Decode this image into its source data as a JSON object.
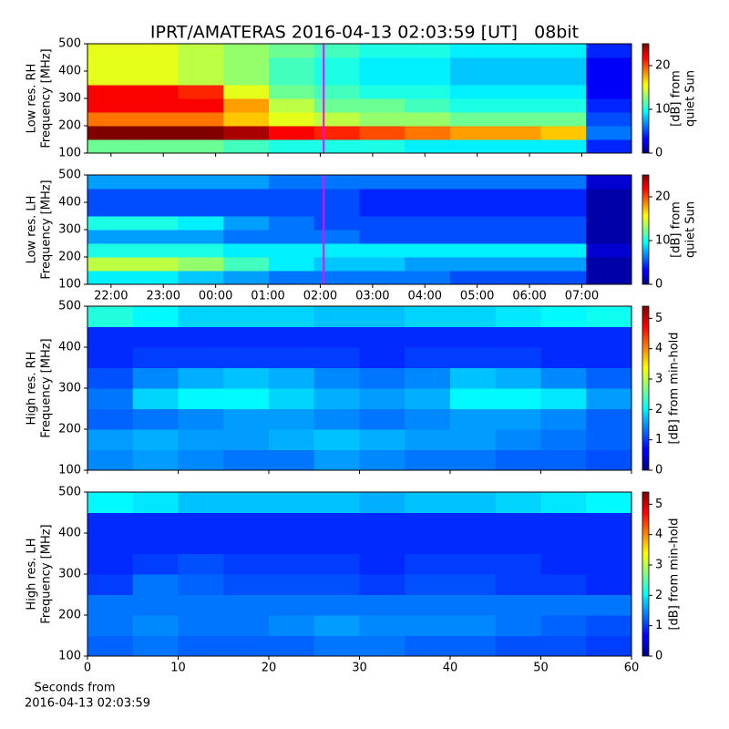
{
  "title": "IPRT/AMATERAS 2016-04-13 02:03:59 [UT]   08bit",
  "xlabel": [
    "Seconds from",
    "2016-04-13 02:03:59"
  ],
  "chart_data": [
    {
      "type": "heatmap",
      "ylabel": [
        "Low res. RH",
        "Frequency [MHz]"
      ],
      "colormap": "jet",
      "ylim": [
        100,
        500
      ],
      "yticks": [
        100,
        200,
        300,
        400,
        500
      ],
      "xlim": [
        21.55,
        31.95
      ],
      "xticks": [
        22,
        23,
        24,
        25,
        26,
        27,
        28,
        29,
        30,
        31
      ],
      "show_xticklabels": false,
      "marker_line": {
        "x": 26.066,
        "color": "#ff00ff"
      },
      "clim": [
        0,
        25
      ],
      "cticks": [
        0,
        10,
        20
      ],
      "clabel": [
        "[dB] from",
        "quiet Sun"
      ],
      "z": [
        [
          12,
          12,
          12,
          11,
          10,
          10,
          10,
          9,
          9,
          9,
          9,
          4
        ],
        [
          25,
          25,
          25,
          24,
          22,
          21,
          20,
          19,
          18,
          18,
          17,
          6
        ],
        [
          19,
          19,
          19,
          17,
          15,
          14,
          13,
          13,
          12,
          12,
          12,
          5
        ],
        [
          22,
          22,
          22,
          18,
          14,
          12,
          12,
          11,
          10,
          10,
          10,
          4
        ],
        [
          22,
          22,
          21,
          15,
          12,
          11,
          10,
          10,
          9,
          9,
          9,
          3
        ],
        [
          15,
          15,
          14,
          13,
          11,
          10,
          9,
          9,
          8,
          8,
          8,
          3
        ],
        [
          15,
          15,
          14,
          13,
          11,
          10,
          9,
          9,
          8,
          8,
          8,
          3
        ],
        [
          15,
          15,
          14,
          13,
          12,
          11,
          10,
          10,
          9,
          9,
          9,
          4
        ]
      ]
    },
    {
      "type": "heatmap",
      "ylabel": [
        "Low res. LH",
        "Frequency [MHz]"
      ],
      "colormap": "jet",
      "ylim": [
        100,
        500
      ],
      "yticks": [
        100,
        200,
        300,
        400,
        500
      ],
      "xlim": [
        21.55,
        31.95
      ],
      "xticks": [
        {
          "value": 22,
          "label": "22:00"
        },
        {
          "value": 23,
          "label": "23:00"
        },
        {
          "value": 24,
          "label": "00:00"
        },
        {
          "value": 25,
          "label": "01:00"
        },
        {
          "value": 26,
          "label": "02:00"
        },
        {
          "value": 27,
          "label": "03:00"
        },
        {
          "value": 28,
          "label": "04:00"
        },
        {
          "value": 29,
          "label": "05:00"
        },
        {
          "value": 30,
          "label": "06:00"
        },
        {
          "value": 31,
          "label": "07:00"
        }
      ],
      "show_xticklabels": true,
      "marker_line": {
        "x": 26.066,
        "color": "#ff00ff"
      },
      "clim": [
        0,
        25
      ],
      "cticks": [
        0,
        10,
        20
      ],
      "clabel": [
        "[dB] from",
        "quiet Sun"
      ],
      "z": [
        [
          9,
          9,
          8,
          7,
          6,
          6,
          6,
          6,
          5,
          5,
          5,
          1
        ],
        [
          14,
          14,
          13,
          11,
          9,
          8,
          8,
          7,
          7,
          7,
          7,
          1
        ],
        [
          10,
          10,
          10,
          9,
          9,
          9,
          9,
          9,
          9,
          9,
          9,
          2
        ],
        [
          7,
          7,
          7,
          6,
          6,
          6,
          5,
          5,
          5,
          5,
          5,
          1
        ],
        [
          10,
          10,
          9,
          7,
          6,
          5,
          5,
          5,
          5,
          5,
          5,
          1
        ],
        [
          5,
          5,
          5,
          5,
          5,
          5,
          4,
          4,
          4,
          4,
          4,
          1
        ],
        [
          5,
          5,
          5,
          5,
          5,
          5,
          4,
          4,
          4,
          4,
          4,
          1
        ],
        [
          7,
          7,
          7,
          7,
          6,
          6,
          6,
          6,
          6,
          6,
          6,
          2
        ]
      ]
    },
    {
      "type": "heatmap",
      "ylabel": [
        "High res. RH",
        "Frequency [MHz]"
      ],
      "colormap": "jet",
      "ylim": [
        100,
        500
      ],
      "yticks": [
        100,
        200,
        300,
        400,
        500
      ],
      "xlim": [
        0,
        60
      ],
      "xticks": [
        0,
        10,
        20,
        30,
        40,
        50,
        60
      ],
      "show_xticklabels": false,
      "clim": [
        0,
        5.4
      ],
      "cticks": [
        0,
        1,
        2,
        3,
        4,
        5
      ],
      "clabel": [
        "[dB] from min-hold"
      ],
      "z": [
        [
          1.4,
          1.5,
          1.4,
          1.3,
          1.3,
          1.5,
          1.4,
          1.3,
          1.3,
          1.2,
          1.2,
          1.1
        ],
        [
          1.5,
          1.6,
          1.5,
          1.5,
          1.6,
          1.7,
          1.6,
          1.5,
          1.5,
          1.4,
          1.3,
          1.2
        ],
        [
          1.2,
          1.3,
          1.4,
          1.5,
          1.5,
          1.4,
          1.3,
          1.4,
          1.5,
          1.5,
          1.4,
          1.2
        ],
        [
          1.3,
          1.8,
          2.0,
          2.0,
          1.8,
          1.6,
          1.5,
          1.6,
          2.0,
          2.0,
          1.9,
          1.5
        ],
        [
          1.1,
          1.4,
          1.6,
          1.7,
          1.6,
          1.4,
          1.3,
          1.4,
          1.7,
          1.6,
          1.4,
          1.2
        ],
        [
          0.9,
          1.0,
          1.0,
          1.0,
          1.0,
          1.0,
          0.9,
          1.0,
          1.0,
          1.0,
          0.9,
          0.9
        ],
        [
          0.9,
          0.9,
          0.9,
          0.9,
          0.9,
          0.9,
          0.9,
          0.9,
          0.9,
          0.9,
          0.9,
          0.9
        ],
        [
          2.2,
          2.0,
          1.8,
          1.8,
          1.8,
          1.7,
          1.7,
          1.8,
          1.8,
          1.9,
          2.0,
          2.1
        ]
      ]
    },
    {
      "type": "heatmap",
      "ylabel": [
        "High res. LH",
        "Frequency [MHz]"
      ],
      "colormap": "jet",
      "ylim": [
        100,
        500
      ],
      "yticks": [
        100,
        200,
        300,
        400,
        500
      ],
      "xlim": [
        0,
        60
      ],
      "xticks": [
        0,
        10,
        20,
        30,
        40,
        50,
        60
      ],
      "show_xticklabels": true,
      "clim": [
        0,
        5.4
      ],
      "cticks": [
        0,
        1,
        2,
        3,
        4,
        5
      ],
      "clabel": [
        "[dB] from min-hold"
      ],
      "z": [
        [
          1.2,
          1.3,
          1.2,
          1.2,
          1.2,
          1.3,
          1.3,
          1.2,
          1.2,
          1.1,
          1.1,
          1.0
        ],
        [
          1.3,
          1.4,
          1.3,
          1.3,
          1.4,
          1.5,
          1.4,
          1.4,
          1.4,
          1.3,
          1.2,
          1.1
        ],
        [
          1.3,
          1.3,
          1.3,
          1.3,
          1.3,
          1.3,
          1.3,
          1.3,
          1.3,
          1.3,
          1.3,
          1.3
        ],
        [
          1.0,
          1.3,
          1.2,
          1.1,
          1.1,
          1.1,
          1.0,
          1.1,
          1.1,
          1.0,
          1.0,
          0.9
        ],
        [
          0.9,
          1.0,
          1.1,
          1.0,
          1.0,
          1.0,
          0.9,
          1.0,
          1.0,
          1.0,
          0.9,
          0.9
        ],
        [
          0.9,
          0.9,
          0.9,
          0.9,
          0.9,
          0.9,
          0.9,
          0.9,
          0.9,
          0.9,
          0.9,
          0.9
        ],
        [
          0.9,
          0.9,
          0.9,
          0.9,
          0.9,
          0.9,
          0.9,
          0.9,
          0.9,
          0.9,
          0.9,
          0.9
        ],
        [
          2.0,
          1.9,
          1.7,
          1.7,
          1.7,
          1.7,
          1.6,
          1.7,
          1.7,
          1.8,
          1.9,
          2.0
        ]
      ]
    }
  ]
}
